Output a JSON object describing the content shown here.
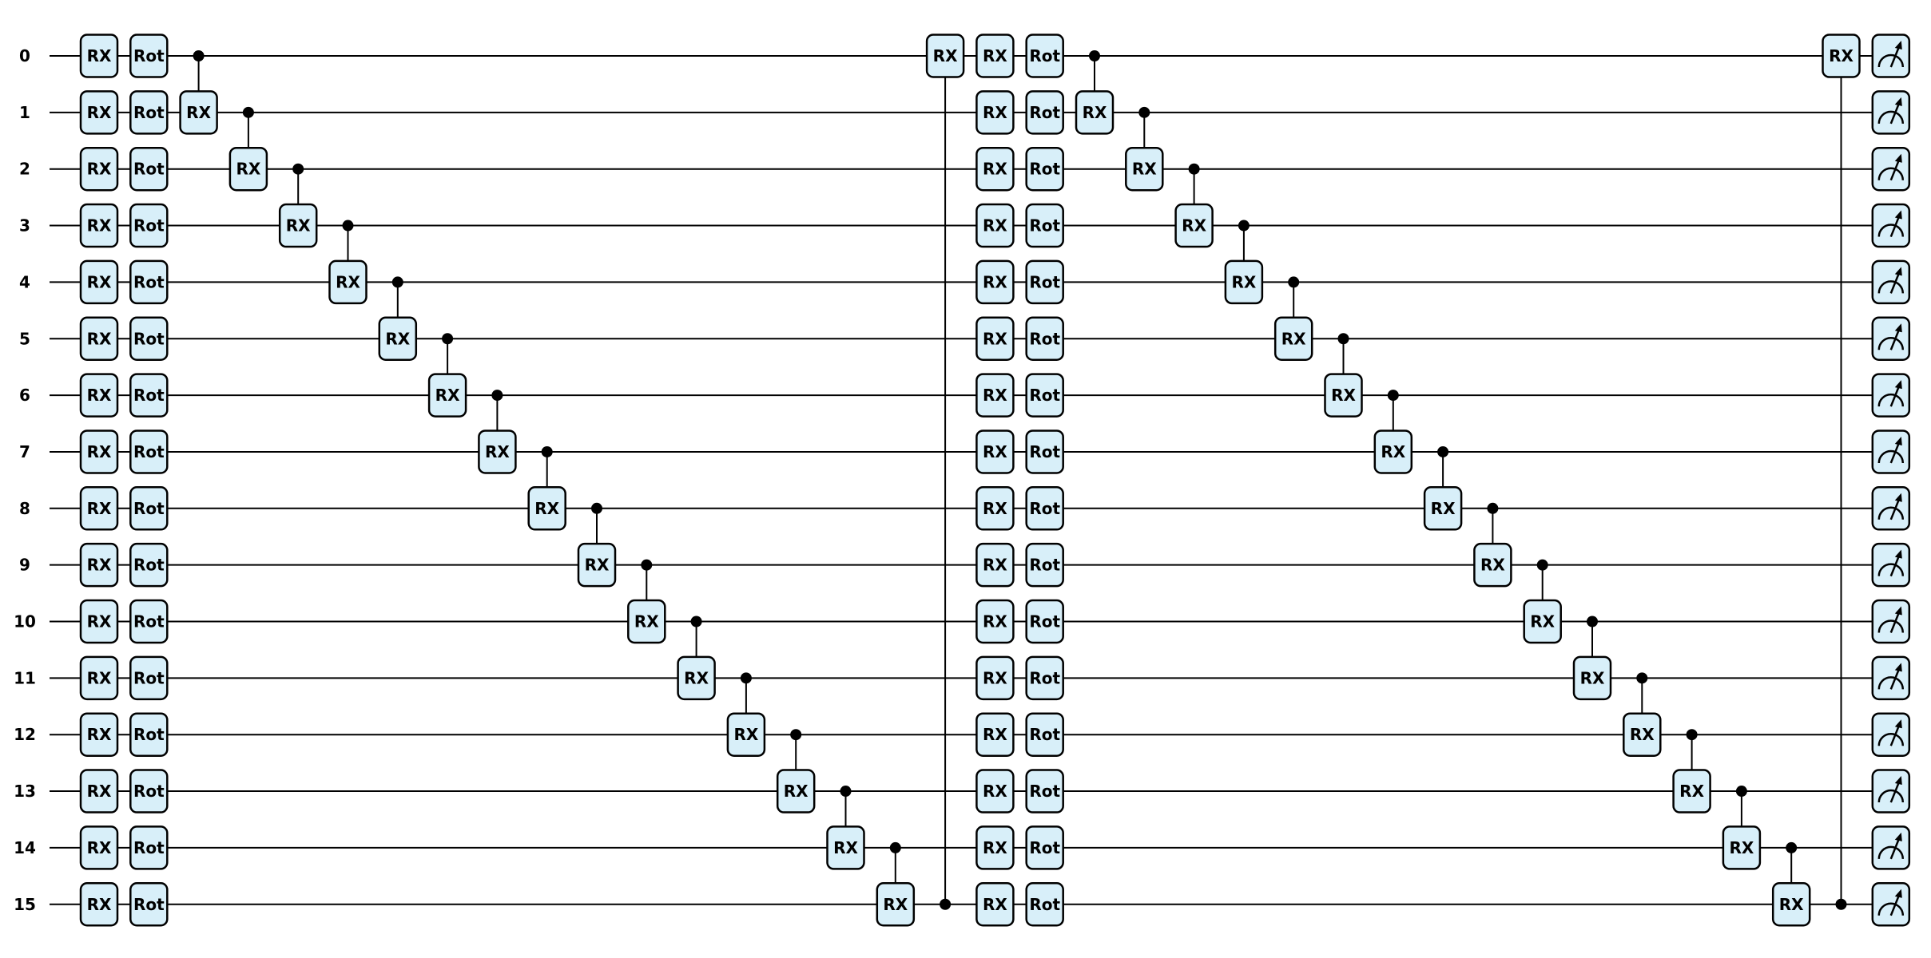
{
  "wires": [
    "0",
    "1",
    "2",
    "3",
    "4",
    "5",
    "6",
    "7",
    "8",
    "9",
    "10",
    "11",
    "12",
    "13",
    "14",
    "15"
  ],
  "blocks": [
    {
      "rotations": [
        [
          "RX",
          "Rot"
        ],
        [
          "RX",
          "Rot"
        ],
        [
          "RX",
          "Rot"
        ],
        [
          "RX",
          "Rot"
        ],
        [
          "RX",
          "Rot"
        ],
        [
          "RX",
          "Rot"
        ],
        [
          "RX",
          "Rot"
        ],
        [
          "RX",
          "Rot"
        ],
        [
          "RX",
          "Rot"
        ],
        [
          "RX",
          "Rot"
        ],
        [
          "RX",
          "Rot"
        ],
        [
          "RX",
          "Rot"
        ],
        [
          "RX",
          "Rot"
        ],
        [
          "RX",
          "Rot"
        ],
        [
          "RX",
          "Rot"
        ],
        [
          "RX",
          "Rot"
        ]
      ],
      "entanglers": [
        "RX",
        "RX",
        "RX",
        "RX",
        "RX",
        "RX",
        "RX",
        "RX",
        "RX",
        "RX",
        "RX",
        "RX",
        "RX",
        "RX",
        "RX",
        "RX"
      ]
    },
    {
      "rotations": [
        [
          "RX",
          "Rot"
        ],
        [
          "RX",
          "Rot"
        ],
        [
          "RX",
          "Rot"
        ],
        [
          "RX",
          "Rot"
        ],
        [
          "RX",
          "Rot"
        ],
        [
          "RX",
          "Rot"
        ],
        [
          "RX",
          "Rot"
        ],
        [
          "RX",
          "Rot"
        ],
        [
          "RX",
          "Rot"
        ],
        [
          "RX",
          "Rot"
        ],
        [
          "RX",
          "Rot"
        ],
        [
          "RX",
          "Rot"
        ],
        [
          "RX",
          "Rot"
        ],
        [
          "RX",
          "Rot"
        ],
        [
          "RX",
          "Rot"
        ],
        [
          "RX",
          "Rot"
        ]
      ],
      "entanglers": [
        "RX",
        "RX",
        "RX",
        "RX",
        "RX",
        "RX",
        "RX",
        "RX",
        "RX",
        "RX",
        "RX",
        "RX",
        "RX",
        "RX",
        "RX",
        "RX"
      ]
    }
  ]
}
